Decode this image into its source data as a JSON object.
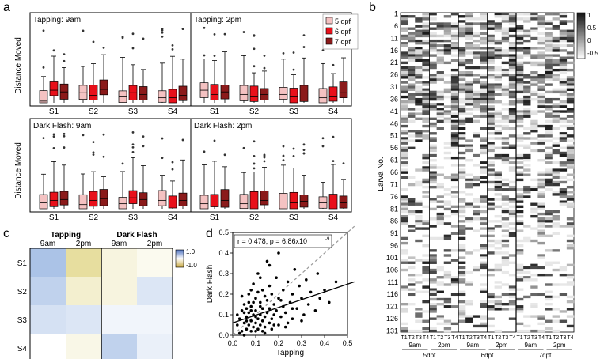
{
  "panel_letters": {
    "a": "a",
    "b": "b",
    "c": "c",
    "d": "d"
  },
  "chart_data": [
    {
      "type": "box",
      "panel": "a",
      "ylabel": "Distance Moved",
      "categories": [
        "S1",
        "S2",
        "S3",
        "S4"
      ],
      "legend": [
        {
          "label": "5 dpf",
          "color": "#f4c2c2"
        },
        {
          "label": "6 dpf",
          "color": "#e8101a"
        },
        {
          "label": "7 dpf",
          "color": "#8b1a1a"
        }
      ],
      "subplots": [
        {
          "title": "Tapping: 9am",
          "medians": [
            [
              0.02,
              0.15,
              0.13
            ],
            [
              0.12,
              0.09,
              0.16
            ],
            [
              0.07,
              0.12,
              0.1
            ],
            [
              0.06,
              0.06,
              0.09
            ]
          ]
        },
        {
          "title": "Tapping: 2pm",
          "medians": [
            [
              0.15,
              0.1,
              0.13
            ],
            [
              0.1,
              0.07,
              0.1
            ],
            [
              0.1,
              0.07,
              0.08
            ],
            [
              0.06,
              0.07,
              0.12
            ]
          ]
        },
        {
          "title": "Dark Flash: 9am",
          "medians": [
            [
              0.07,
              0.1,
              0.11
            ],
            [
              0.05,
              0.1,
              0.12
            ],
            [
              0.06,
              0.13,
              0.11
            ],
            [
              0.1,
              0.08,
              0.1
            ]
          ]
        },
        {
          "title": "Dark Flash: 2pm",
          "medians": [
            [
              0.06,
              0.08,
              0.1
            ],
            [
              0.06,
              0.08,
              0.1
            ],
            [
              0.08,
              0.07,
              0.09
            ],
            [
              0.07,
              0.08,
              0.07
            ]
          ]
        }
      ]
    },
    {
      "type": "heatmap",
      "panel": "b",
      "ylabel": "Larva No.",
      "row_ticks": [
        "1",
        "6",
        "11",
        "16",
        "21",
        "26",
        "31",
        "36",
        "41",
        "46",
        "51",
        "56",
        "61",
        "66",
        "71",
        "76",
        "81",
        "86",
        "91",
        "96",
        "101",
        "106",
        "111",
        "116",
        "121",
        "126",
        "131"
      ],
      "col_ticks": [
        "T1",
        "T2",
        "T3",
        "T4",
        "T1",
        "T2",
        "T3",
        "T4",
        "T1",
        "T2",
        "T3",
        "T4",
        "T1",
        "T2",
        "T3",
        "T4",
        "T1",
        "T2",
        "T3",
        "T4",
        "T1",
        "T2",
        "T3",
        "T4"
      ],
      "time_groups": [
        "9am",
        "2pm",
        "9am",
        "2pm",
        "9am",
        "2pm"
      ],
      "age_groups": [
        "5dpf",
        "6dpf",
        "7dpf"
      ],
      "colorbar_ticks": [
        "1",
        "0.5",
        "0",
        "-0.5"
      ],
      "colorbar_range": [
        -0.5,
        1
      ],
      "n_rows": 131,
      "n_cols": 24
    },
    {
      "type": "heatmap",
      "panel": "c",
      "group_labels": [
        "Tapping",
        "Dark Flash"
      ],
      "col_labels": [
        "9am",
        "2pm",
        "9am",
        "2pm"
      ],
      "row_labels": [
        "S1",
        "S2",
        "S3",
        "S4"
      ],
      "colorbar_ticks": [
        "1.0",
        "-1.0"
      ],
      "values": [
        [
          0.6,
          -0.6,
          -0.2,
          -0.1
        ],
        [
          0.45,
          -0.3,
          -0.2,
          0.25
        ],
        [
          0.3,
          0.25,
          0.1,
          0.1
        ],
        [
          0.0,
          -0.15,
          0.45,
          0.15
        ]
      ]
    },
    {
      "type": "scatter",
      "panel": "d",
      "xlabel": "Tapping",
      "ylabel": "Dark Flash",
      "annotation": "r = 0.478, p = 6.86x10",
      "annotation_sup": "-9",
      "xlim": [
        0,
        0.5
      ],
      "ylim": [
        0,
        0.5
      ],
      "xticks": [
        "0.0",
        "0.1",
        "0.2",
        "0.3",
        "0.4",
        "0.5"
      ],
      "yticks": [
        "0.0",
        "0.1",
        "0.2",
        "0.3",
        "0.4",
        "0.5"
      ],
      "fit_line": [
        [
          0,
          0.06
        ],
        [
          0.53,
          0.26
        ]
      ],
      "identity_line": [
        [
          0,
          0
        ],
        [
          0.53,
          0.53
        ]
      ],
      "points": [
        [
          0.02,
          0.05
        ],
        [
          0.03,
          0.08
        ],
        [
          0.04,
          0.02
        ],
        [
          0.04,
          0.12
        ],
        [
          0.05,
          0.06
        ],
        [
          0.05,
          0.15
        ],
        [
          0.06,
          0.03
        ],
        [
          0.06,
          0.09
        ],
        [
          0.07,
          0.05
        ],
        [
          0.07,
          0.11
        ],
        [
          0.07,
          0.2
        ],
        [
          0.08,
          0.02
        ],
        [
          0.08,
          0.07
        ],
        [
          0.08,
          0.14
        ],
        [
          0.09,
          0.04
        ],
        [
          0.09,
          0.1
        ],
        [
          0.09,
          0.25
        ],
        [
          0.1,
          0.06
        ],
        [
          0.1,
          0.12
        ],
        [
          0.1,
          0.18
        ],
        [
          0.11,
          0.03
        ],
        [
          0.11,
          0.08
        ],
        [
          0.11,
          0.3
        ],
        [
          0.12,
          0.05
        ],
        [
          0.12,
          0.1
        ],
        [
          0.12,
          0.16
        ],
        [
          0.13,
          0.07
        ],
        [
          0.13,
          0.13
        ],
        [
          0.13,
          0.22
        ],
        [
          0.14,
          0.04
        ],
        [
          0.14,
          0.09
        ],
        [
          0.15,
          0.11
        ],
        [
          0.15,
          0.17
        ],
        [
          0.16,
          0.06
        ],
        [
          0.16,
          0.13
        ],
        [
          0.16,
          0.34
        ],
        [
          0.17,
          0.08
        ],
        [
          0.17,
          0.2
        ],
        [
          0.18,
          0.1
        ],
        [
          0.18,
          0.15
        ],
        [
          0.19,
          0.12
        ],
        [
          0.2,
          0.05
        ],
        [
          0.2,
          0.18
        ],
        [
          0.2,
          0.4
        ],
        [
          0.21,
          0.09
        ],
        [
          0.22,
          0.14
        ],
        [
          0.22,
          0.22
        ],
        [
          0.23,
          0.11
        ],
        [
          0.24,
          0.26
        ],
        [
          0.25,
          0.16
        ],
        [
          0.26,
          0.08
        ],
        [
          0.26,
          0.2
        ],
        [
          0.27,
          0.32
        ],
        [
          0.28,
          0.13
        ],
        [
          0.29,
          0.24
        ],
        [
          0.3,
          0.18
        ],
        [
          0.31,
          0.1
        ],
        [
          0.32,
          0.27
        ],
        [
          0.33,
          0.15
        ],
        [
          0.34,
          0.21
        ],
        [
          0.36,
          0.12
        ],
        [
          0.37,
          0.3
        ],
        [
          0.38,
          0.18
        ],
        [
          0.4,
          0.22
        ],
        [
          0.42,
          0.16
        ],
        [
          0.45,
          0.26
        ],
        [
          0.03,
          0.01
        ],
        [
          0.05,
          0.0
        ],
        [
          0.06,
          0.13
        ],
        [
          0.1,
          0.02
        ],
        [
          0.14,
          0.01
        ],
        [
          0.02,
          0.1
        ],
        [
          0.04,
          0.19
        ],
        [
          0.08,
          0.22
        ],
        [
          0.12,
          0.28
        ],
        [
          0.15,
          0.36
        ],
        [
          0.18,
          0.05
        ],
        [
          0.24,
          0.06
        ],
        [
          0.26,
          0.13
        ],
        [
          0.3,
          0.07
        ],
        [
          0.09,
          0.16
        ],
        [
          0.11,
          0.21
        ],
        [
          0.13,
          0.02
        ],
        [
          0.17,
          0.03
        ],
        [
          0.19,
          0.28
        ],
        [
          0.21,
          0.17
        ],
        [
          0.23,
          0.04
        ],
        [
          0.06,
          0.07
        ],
        [
          0.08,
          0.12
        ],
        [
          0.1,
          0.09
        ],
        [
          0.05,
          0.11
        ],
        [
          0.07,
          0.16
        ],
        [
          0.12,
          0.14
        ],
        [
          0.14,
          0.19
        ],
        [
          0.16,
          0.24
        ]
      ]
    }
  ]
}
